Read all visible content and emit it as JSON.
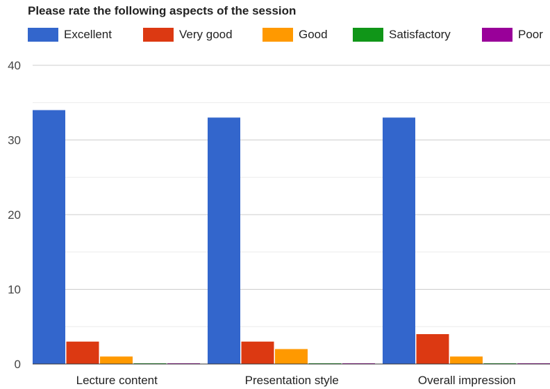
{
  "chart_data": {
    "type": "bar",
    "title": "Please rate the following aspects of the session",
    "xlabel": "",
    "ylabel": "",
    "categories": [
      "Lecture content",
      "Presentation style",
      "Overall impression"
    ],
    "series": [
      {
        "name": "Excellent",
        "color": "#3366cc",
        "values": [
          34,
          33,
          33
        ]
      },
      {
        "name": "Very good",
        "color": "#dc3912",
        "values": [
          3,
          3,
          4
        ]
      },
      {
        "name": "Good",
        "color": "#ff9900",
        "values": [
          1,
          2,
          1
        ]
      },
      {
        "name": "Satisfactory",
        "color": "#109618",
        "values": [
          0,
          0,
          0
        ]
      },
      {
        "name": "Poor",
        "color": "#990099",
        "values": [
          0,
          0,
          0
        ]
      }
    ],
    "ylim": [
      0,
      40
    ],
    "yticks": [
      0,
      10,
      20,
      30,
      40
    ],
    "grid": true,
    "legend_position": "top"
  }
}
